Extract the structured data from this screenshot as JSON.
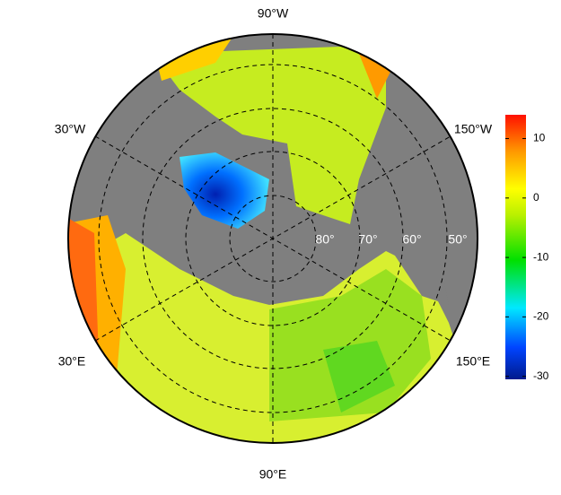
{
  "map": {
    "longitude_labels": [
      "90°W",
      "30°W",
      "150°W",
      "30°E",
      "150°E",
      "90°E"
    ],
    "latitude_labels": [
      "80°",
      "70°",
      "60°",
      "50°"
    ]
  },
  "colorbar": {
    "range": [
      -30.5,
      14
    ],
    "ticks": [
      10,
      0,
      -10,
      -20,
      -30
    ]
  }
}
